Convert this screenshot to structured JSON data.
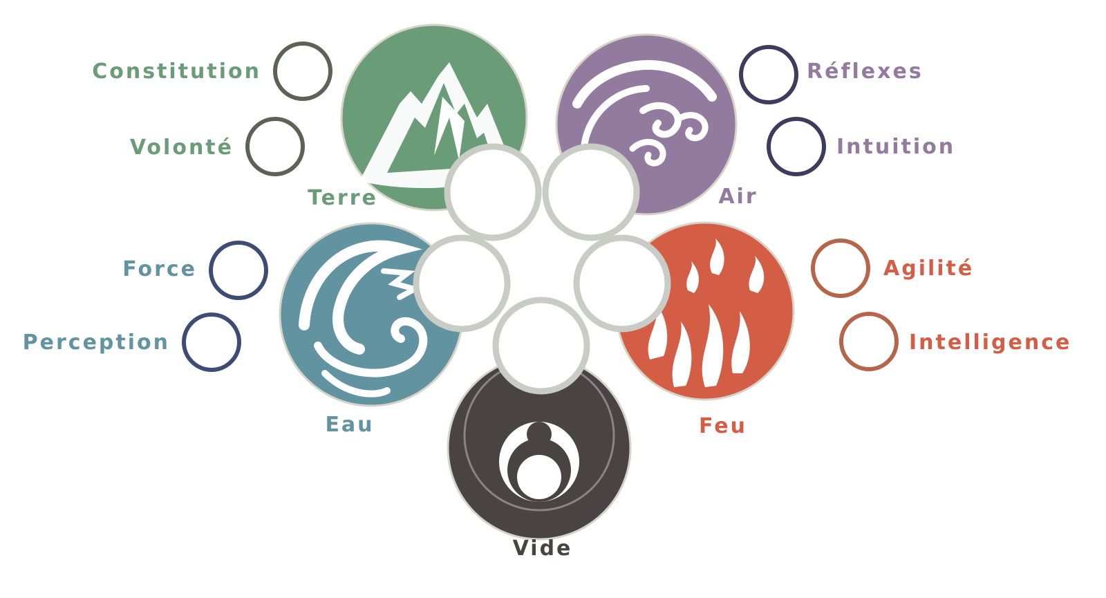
{
  "elements": {
    "terre": {
      "label": "Terre",
      "color": "#6a9c77",
      "icon": "mountain-icon"
    },
    "air": {
      "label": "Air",
      "color": "#937b9f",
      "icon": "wind-swirl-icon"
    },
    "eau": {
      "label": "Eau",
      "color": "#6193a1",
      "icon": "wave-icon"
    },
    "feu": {
      "label": "Feu",
      "color": "#d45e45",
      "icon": "flame-icon"
    },
    "vide": {
      "label": "Vide",
      "color": "#494443",
      "icon": "void-symbol-icon"
    }
  },
  "traits": {
    "constitution": {
      "label": "Constitution",
      "color": "#6a9c77",
      "ring_color": "#5c6354"
    },
    "volonte": {
      "label": "Volonté",
      "color": "#6a9c77",
      "ring_color": "#5c6354"
    },
    "reflexes": {
      "label": "Réflexes",
      "color": "#937b9f",
      "ring_color": "#3c3c5c"
    },
    "intuition": {
      "label": "Intuition",
      "color": "#937b9f",
      "ring_color": "#3c3c5c"
    },
    "force": {
      "label": "Force",
      "color": "#6193a1",
      "ring_color": "#3e4c74"
    },
    "perception": {
      "label": "Perception",
      "color": "#6193a1",
      "ring_color": "#3e4c74"
    },
    "agilite": {
      "label": "Agilité",
      "color": "#d45e45",
      "ring_color": "#b5654a"
    },
    "intelligence": {
      "label": "Intelligence",
      "color": "#d45e45",
      "ring_color": "#b5654a"
    }
  }
}
